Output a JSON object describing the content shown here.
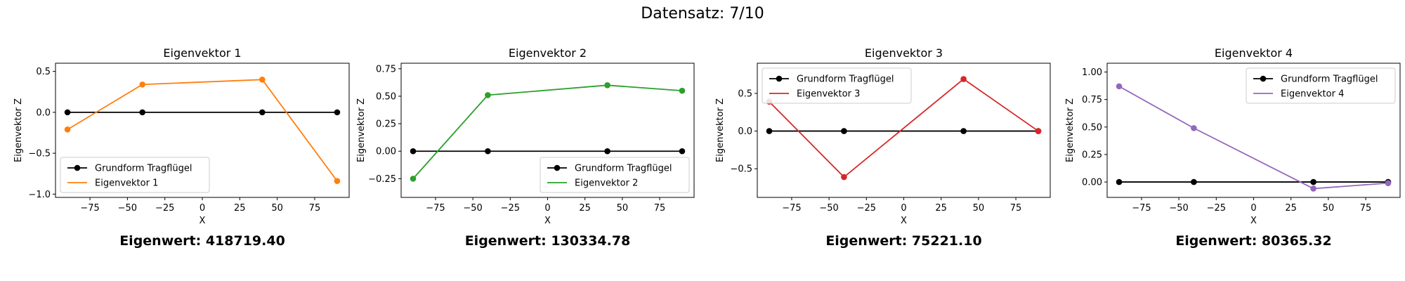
{
  "figure": {
    "suptitle": "Datensatz: 7/10"
  },
  "chart_data": [
    {
      "type": "line",
      "title": "Eigenvektor 1",
      "xlabel": "X",
      "ylabel": "Eigenvektor Z",
      "xlim": [
        -98,
        98
      ],
      "ylim": [
        -1.04,
        0.6
      ],
      "xticks": [
        -75,
        -50,
        -25,
        0,
        25,
        50,
        75
      ],
      "yticks": [
        -1.0,
        -0.5,
        0.0,
        0.5
      ],
      "ytick_labels": [
        "−1.0",
        "−0.5",
        "0.0",
        "0.5"
      ],
      "legend": "lower-left",
      "eigenvalue_label": "Eigenwert: 418719.40",
      "series": [
        {
          "name": "Grundform Tragflügel",
          "color": "#000000",
          "x": [
            -90,
            -40,
            40,
            90
          ],
          "y": [
            0,
            0,
            0,
            0
          ]
        },
        {
          "name": "Eigenvektor 1",
          "color": "#ff7f0e",
          "x": [
            -90,
            -40,
            40,
            90
          ],
          "y": [
            -0.21,
            0.34,
            0.4,
            -0.84
          ]
        }
      ]
    },
    {
      "type": "line",
      "title": "Eigenvektor 2",
      "xlabel": "X",
      "ylabel": "Eigenvektor Z",
      "xlim": [
        -98,
        98
      ],
      "ylim": [
        -0.42,
        0.8
      ],
      "xticks": [
        -75,
        -50,
        -25,
        0,
        25,
        50,
        75
      ],
      "yticks": [
        -0.25,
        0.0,
        0.25,
        0.5,
        0.75
      ],
      "ytick_labels": [
        "−0.25",
        "0.00",
        "0.25",
        "0.50",
        "0.75"
      ],
      "legend": "lower-right",
      "eigenvalue_label": "Eigenwert: 130334.78",
      "series": [
        {
          "name": "Grundform Tragflügel",
          "color": "#000000",
          "x": [
            -90,
            -40,
            40,
            90
          ],
          "y": [
            0,
            0,
            0,
            0
          ]
        },
        {
          "name": "Eigenvektor 2",
          "color": "#2ca02c",
          "x": [
            -90,
            -40,
            40,
            90
          ],
          "y": [
            -0.25,
            0.51,
            0.6,
            0.55
          ]
        }
      ]
    },
    {
      "type": "line",
      "title": "Eigenvektor 3",
      "xlabel": "X",
      "ylabel": "Eigenvektor Z",
      "xlim": [
        -98,
        98
      ],
      "ylim": [
        -0.88,
        0.9
      ],
      "xticks": [
        -75,
        -50,
        -25,
        0,
        25,
        50,
        75
      ],
      "yticks": [
        -0.5,
        0.0,
        0.5
      ],
      "ytick_labels": [
        "−0.5",
        "0.0",
        "0.5"
      ],
      "legend": "upper-left",
      "eigenvalue_label": "Eigenwert: 75221.10",
      "series": [
        {
          "name": "Grundform Tragflügel",
          "color": "#000000",
          "x": [
            -90,
            -40,
            40,
            90
          ],
          "y": [
            0,
            0,
            0,
            0
          ]
        },
        {
          "name": "Eigenvektor 3",
          "color": "#d62728",
          "x": [
            -90,
            -40,
            40,
            90
          ],
          "y": [
            0.39,
            -0.61,
            0.69,
            0.0
          ]
        }
      ]
    },
    {
      "type": "line",
      "title": "Eigenvektor 4",
      "xlabel": "X",
      "ylabel": "Eigenvektor Z",
      "xlim": [
        -98,
        98
      ],
      "ylim": [
        -0.14,
        1.08
      ],
      "xticks": [
        -75,
        -50,
        -25,
        0,
        25,
        50,
        75
      ],
      "yticks": [
        0.0,
        0.25,
        0.5,
        0.75,
        1.0
      ],
      "ytick_labels": [
        "0.00",
        "0.25",
        "0.50",
        "0.75",
        "1.00"
      ],
      "legend": "upper-right",
      "eigenvalue_label": "Eigenwert: 80365.32",
      "series": [
        {
          "name": "Grundform Tragflügel",
          "color": "#000000",
          "x": [
            -90,
            -40,
            40,
            90
          ],
          "y": [
            0,
            0,
            0,
            0
          ]
        },
        {
          "name": "Eigenvektor 4",
          "color": "#9467bd",
          "x": [
            -90,
            -40,
            40,
            90
          ],
          "y": [
            0.87,
            0.49,
            -0.06,
            -0.01
          ]
        }
      ]
    }
  ]
}
